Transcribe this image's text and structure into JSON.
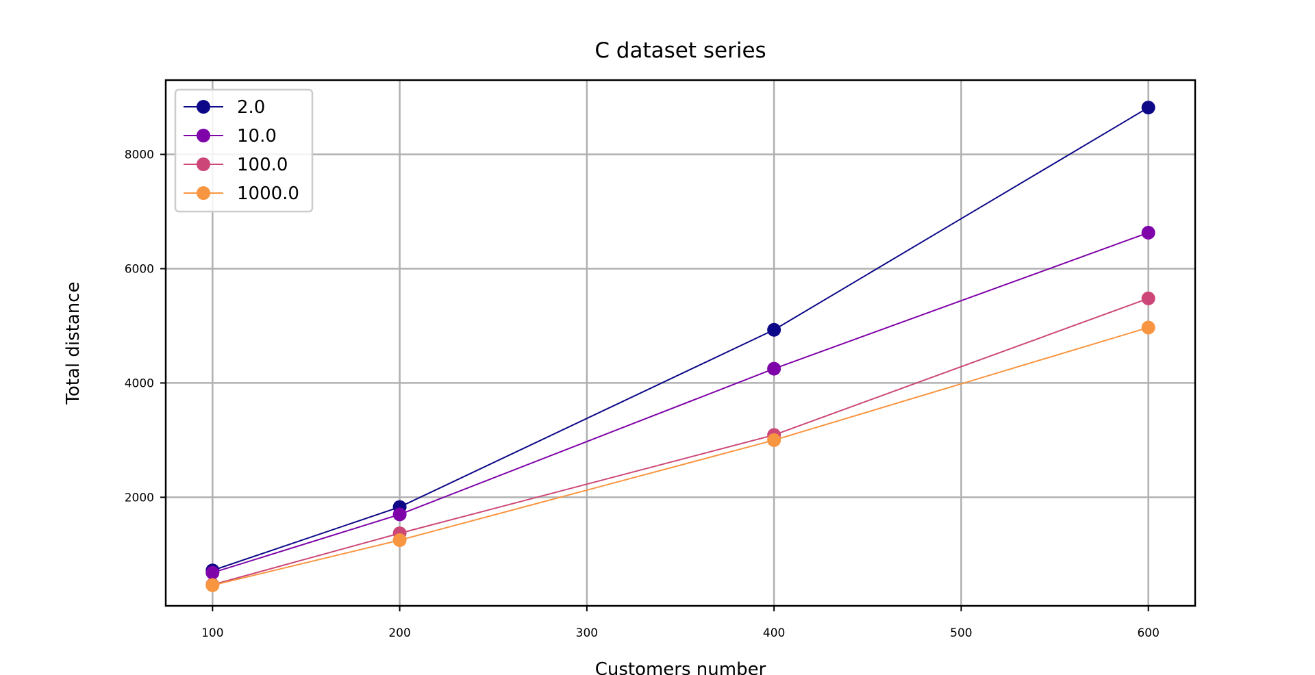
{
  "chart_data": {
    "type": "line",
    "title": "C dataset series",
    "xlabel": "Customers number",
    "ylabel": "Total distance",
    "x": [
      100,
      200,
      400,
      600
    ],
    "xlim": [
      75,
      625
    ],
    "ylim": [
      100,
      9300
    ],
    "xticks": [
      100,
      200,
      300,
      400,
      500,
      600
    ],
    "yticks": [
      2000,
      4000,
      6000,
      8000
    ],
    "grid": true,
    "legend_position": "top-left",
    "series": [
      {
        "name": "2.0",
        "color": "#0d0887",
        "values": [
          720,
          1830,
          4930,
          8820
        ]
      },
      {
        "name": "10.0",
        "color": "#7e03a8",
        "values": [
          680,
          1700,
          4250,
          6630
        ]
      },
      {
        "name": "100.0",
        "color": "#cc4778",
        "values": [
          470,
          1370,
          3090,
          5480
        ]
      },
      {
        "name": "1000.0",
        "color": "#f89540",
        "values": [
          460,
          1250,
          3000,
          4970
        ]
      }
    ]
  }
}
